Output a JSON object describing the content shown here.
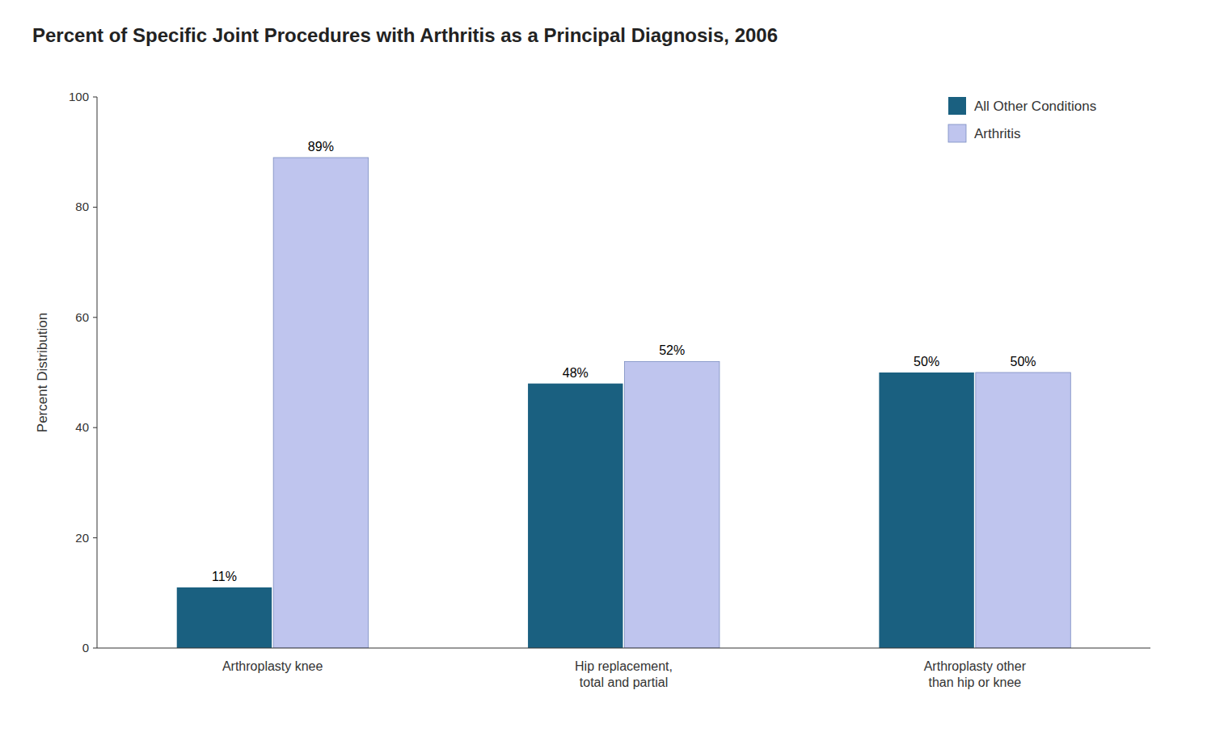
{
  "chart_data": {
    "type": "bar",
    "title": "Percent of Specific Joint Procedures with Arthritis as a Principal Diagnosis, 2006",
    "ylabel": "Percent Distribution",
    "categories": [
      "Arthroplasty knee",
      "Hip replacement,\ntotal and partial",
      "Arthroplasty other\nthan hip or knee"
    ],
    "series": [
      {
        "name": "All Other Conditions",
        "color": "#1a6080",
        "values": [
          11,
          48,
          50
        ],
        "value_labels": [
          "11%",
          "48%",
          "50%"
        ]
      },
      {
        "name": "Arthritis",
        "color": "#bfc5ee",
        "values": [
          89,
          52,
          50
        ],
        "value_labels": [
          "89%",
          "52%",
          "50%"
        ]
      }
    ],
    "ylim": [
      0,
      100
    ],
    "yticks": [
      0,
      20,
      40,
      60,
      80,
      100
    ],
    "grid": false,
    "legend": "upper right",
    "data_labels": true
  }
}
